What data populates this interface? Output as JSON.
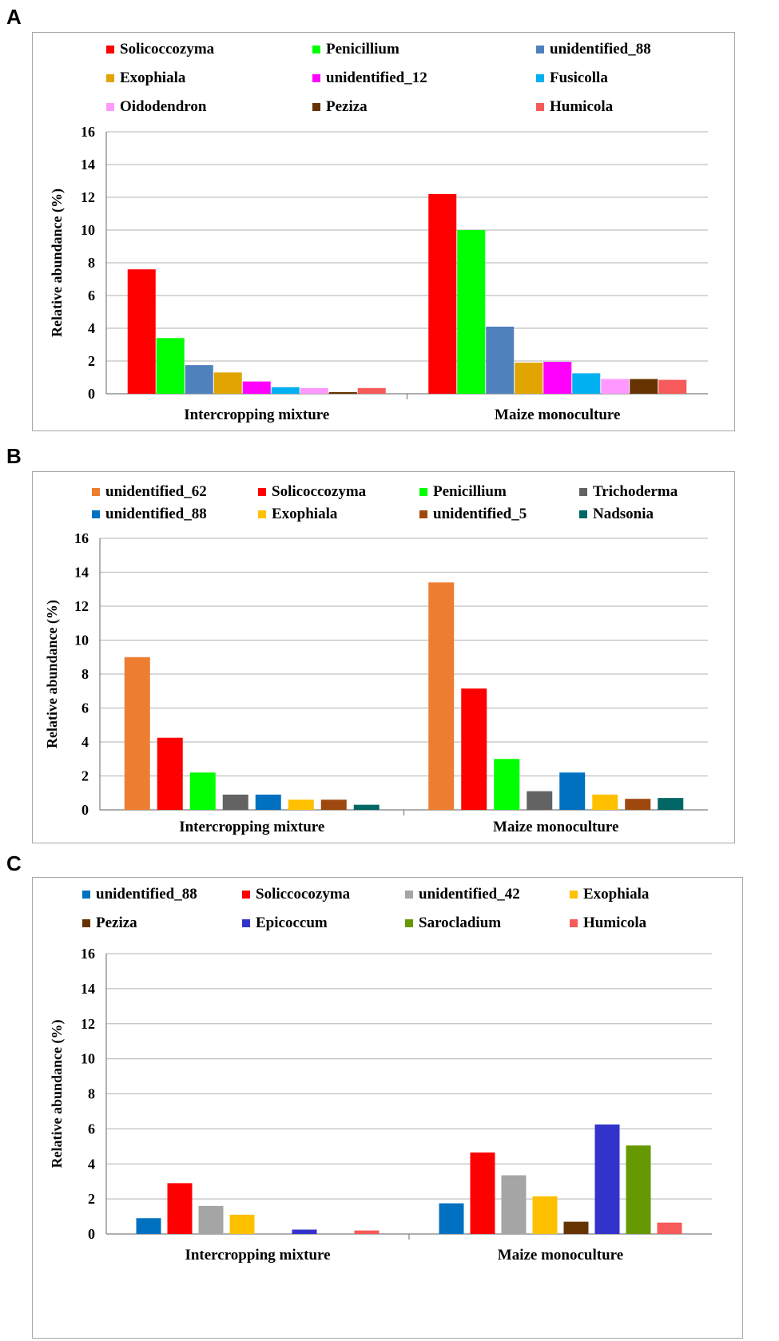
{
  "chart_data": [
    {
      "panel_label": "A",
      "type": "bar",
      "ylabel": "Relative abundance (%)",
      "xlabel": "",
      "ylim": [
        0,
        16
      ],
      "yticks": [
        "0",
        "2",
        "4",
        "6",
        "8",
        "10",
        "12",
        "14",
        "16"
      ],
      "grid": true,
      "legend_position": "top",
      "categories": [
        "Intercropping mixture",
        "Maize monoculture"
      ],
      "series": [
        {
          "name": "Solicoccozyma",
          "color": "#ff0000",
          "values": [
            7.6,
            12.2
          ]
        },
        {
          "name": "Penicillium",
          "color": "#00ff00",
          "values": [
            3.4,
            10.0
          ]
        },
        {
          "name": "unidentified_88",
          "color": "#4f81bd",
          "values": [
            1.75,
            4.1
          ]
        },
        {
          "name": "Exophiala",
          "color": "#e0a500",
          "values": [
            1.3,
            1.9
          ]
        },
        {
          "name": "unidentified_12",
          "color": "#ff00ff",
          "values": [
            0.75,
            1.95
          ]
        },
        {
          "name": "Fusicolla",
          "color": "#00b0f0",
          "values": [
            0.4,
            1.25
          ]
        },
        {
          "name": "Oidodendron",
          "color": "#ff99ff",
          "values": [
            0.35,
            0.9
          ]
        },
        {
          "name": "Peziza",
          "color": "#663300",
          "values": [
            0.1,
            0.9
          ]
        },
        {
          "name": "Humicola",
          "color": "#f65a5a",
          "values": [
            0.35,
            0.85
          ]
        }
      ]
    },
    {
      "panel_label": "B",
      "type": "bar",
      "ylabel": "Relative abundance (%)",
      "xlabel": "",
      "ylim": [
        0,
        16
      ],
      "yticks": [
        "0",
        "2",
        "4",
        "6",
        "8",
        "10",
        "12",
        "14",
        "16"
      ],
      "grid": true,
      "legend_position": "top",
      "categories": [
        "Intercropping mixture",
        "Maize monoculture"
      ],
      "series": [
        {
          "name": "unidentified_62",
          "color": "#ed7d31",
          "values": [
            9.0,
            13.4
          ]
        },
        {
          "name": "Solicoccozyma",
          "color": "#ff0000",
          "values": [
            4.25,
            7.15
          ]
        },
        {
          "name": "Penicillium",
          "color": "#00ff00",
          "values": [
            2.2,
            3.0
          ]
        },
        {
          "name": "Trichoderma",
          "color": "#636363",
          "values": [
            0.9,
            1.1
          ]
        },
        {
          "name": "unidentified_88",
          "color": "#0070c0",
          "values": [
            0.9,
            2.2
          ]
        },
        {
          "name": "Exophiala",
          "color": "#ffc000",
          "values": [
            0.6,
            0.9
          ]
        },
        {
          "name": "unidentified_5",
          "color": "#9e480e",
          "values": [
            0.6,
            0.65
          ]
        },
        {
          "name": "Nadsonia",
          "color": "#006666",
          "values": [
            0.3,
            0.7
          ]
        }
      ]
    },
    {
      "panel_label": "C",
      "type": "bar",
      "ylabel": "Relative abundance (%)",
      "xlabel": "",
      "ylim": [
        0,
        16
      ],
      "yticks": [
        "0",
        "2",
        "4",
        "6",
        "8",
        "10",
        "12",
        "14",
        "16"
      ],
      "grid": true,
      "legend_position": "top",
      "categories": [
        "Intercropping mixture",
        "Maize monoculture"
      ],
      "series": [
        {
          "name": "unidentified_88",
          "color": "#0070c0",
          "values": [
            0.9,
            1.75
          ]
        },
        {
          "name": "Soliccocozyma",
          "color": "#ff0000",
          "values": [
            2.9,
            4.65
          ]
        },
        {
          "name": "unidentified_42",
          "color": "#a5a5a5",
          "values": [
            1.6,
            3.35
          ]
        },
        {
          "name": "Exophiala",
          "color": "#ffc000",
          "values": [
            1.1,
            2.15
          ]
        },
        {
          "name": "Peziza",
          "color": "#663300",
          "values": [
            0,
            0.7
          ]
        },
        {
          "name": "Epicoccum",
          "color": "#3333cc",
          "values": [
            0.25,
            6.25
          ]
        },
        {
          "name": "Sarocladium",
          "color": "#669900",
          "values": [
            0,
            5.05
          ]
        },
        {
          "name": "Humicola",
          "color": "#f65a5a",
          "values": [
            0.2,
            0.65
          ]
        }
      ]
    }
  ]
}
